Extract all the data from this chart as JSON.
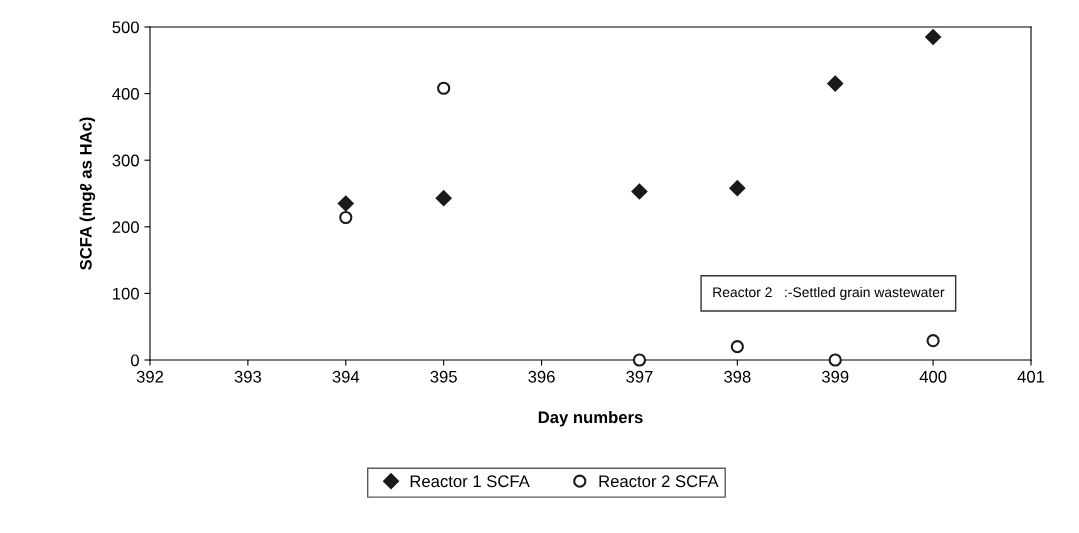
{
  "chart_data": {
    "type": "scatter",
    "xlabel": "Day numbers",
    "ylabel": "SCFA (mgℓ as HAc)",
    "x": [
      394,
      395,
      397,
      398,
      399,
      400
    ],
    "series": [
      {
        "name": "Reactor 1 SCFA",
        "color": "#1a1a1a",
        "marker": "diamond",
        "values": [
          235,
          243,
          253,
          258,
          415,
          485
        ]
      },
      {
        "name": "Reactor 2 SCFA",
        "color": "#1a1a1a",
        "marker": "circle",
        "values": [
          214,
          408,
          0,
          20,
          0,
          29
        ]
      }
    ],
    "xlim": [
      392,
      401
    ],
    "xticks": [
      392,
      393,
      394,
      395,
      396,
      397,
      398,
      399,
      400,
      401
    ],
    "ylim": [
      0,
      500
    ],
    "yticks": [
      0,
      100,
      200,
      300,
      400,
      500
    ],
    "annotations": [
      "Reactor 2   :-Settled grain wastewater"
    ],
    "grid": false,
    "legend": "bottom"
  }
}
